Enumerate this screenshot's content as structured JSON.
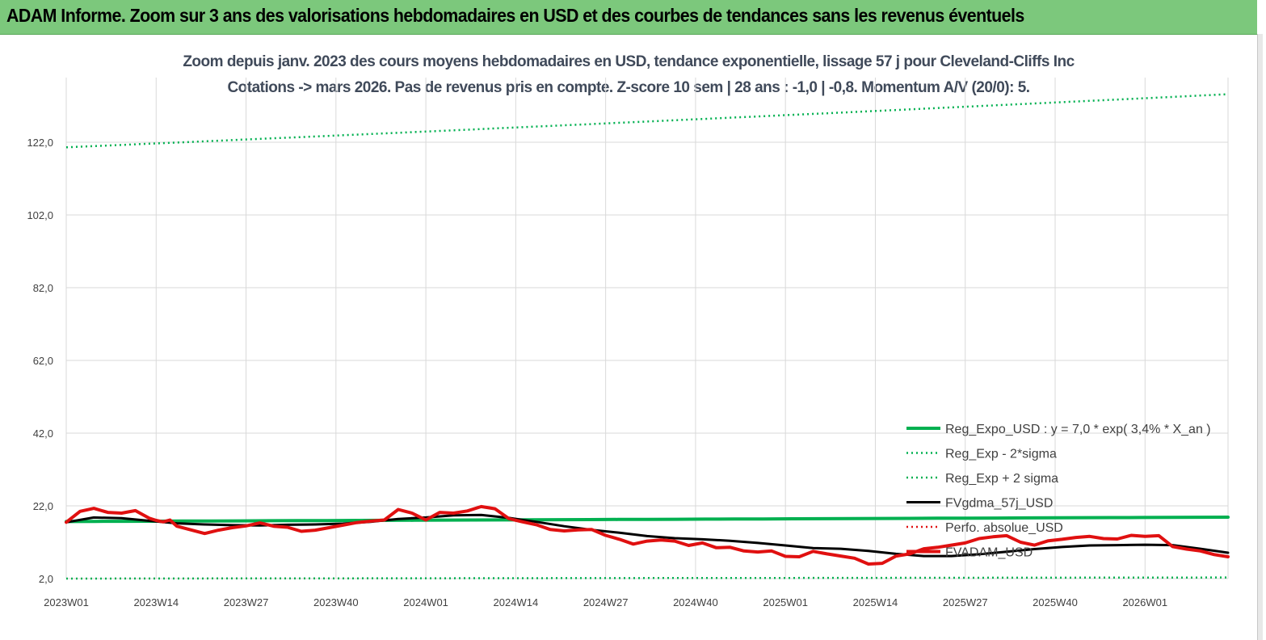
{
  "header": {
    "title": "ADAM Informe. Zoom sur 3 ans des valorisations hebdomadaires en USD et des courbes de tendances sans les revenus éventuels"
  },
  "chart_data": {
    "type": "line",
    "title": "Zoom depuis janv. 2023 des cours moyens hebdomadaires en USD, tendance exponentielle, lissage 57 j pour Cleveland-Cliffs Inc",
    "subtitle": "Cotations -> mars 2026. Pas de revenus pris en compte. Z-score 10 sem  | 28 ans : -1,0 | -0,8. Momentum A/V (20/0): 5.",
    "xlabel": "",
    "ylabel": "",
    "ylim": [
      2,
      142
    ],
    "grid": true,
    "legend_position": "bottom-right",
    "y_ticks": [
      "2,0",
      "22,0",
      "42,0",
      "62,0",
      "82,0",
      "102,0",
      "122,0"
    ],
    "y_tick_values": [
      2,
      22,
      42,
      62,
      82,
      102,
      122
    ],
    "x_ticks": [
      "2023W01",
      "2023W14",
      "2023W27",
      "2023W40",
      "2024W01",
      "2024W14",
      "2024W27",
      "2024W40",
      "2025W01",
      "2025W14",
      "2025W27",
      "2025W40",
      "2026W01"
    ],
    "x_range_weeks": [
      0,
      168
    ],
    "series": [
      {
        "name": "Reg_Expo_USD : y = 7,0 * exp( 3,4% *  X_an )",
        "color": "#00b050",
        "style": "solid",
        "width": 4,
        "x": [
          0,
          168
        ],
        "values": [
          17.7,
          18.9
        ]
      },
      {
        "name": "Reg_Exp - 2*sigma",
        "color": "#00b050",
        "style": "dotted",
        "width": 2.5,
        "x": [
          0,
          168
        ],
        "values": [
          2.0,
          2.3
        ]
      },
      {
        "name": "Reg_Exp + 2 sigma",
        "color": "#00b050",
        "style": "dotted",
        "width": 2.5,
        "x": [
          0,
          168
        ],
        "values": [
          120.6,
          135.2
        ]
      },
      {
        "name": "FVgdma_57j_USD",
        "color": "#000000",
        "style": "solid",
        "width": 3,
        "x": [
          0,
          4,
          8,
          12,
          16,
          20,
          24,
          28,
          32,
          36,
          40,
          44,
          48,
          52,
          56,
          60,
          64,
          68,
          72,
          76,
          80,
          84,
          88,
          92,
          96,
          100,
          104,
          108,
          112,
          116,
          120,
          124,
          128,
          132,
          136,
          140,
          144,
          148,
          152,
          156,
          160,
          164,
          168
        ],
        "values": [
          17.5,
          18.8,
          18.6,
          17.9,
          17.2,
          16.9,
          16.7,
          16.6,
          16.8,
          16.9,
          17.1,
          17.6,
          18.4,
          18.8,
          19.4,
          19.5,
          18.7,
          17.6,
          16.4,
          15.4,
          14.6,
          13.7,
          13.1,
          12.8,
          12.4,
          11.8,
          11.1,
          10.4,
          10.2,
          9.6,
          8.8,
          8.2,
          8.2,
          8.7,
          9.4,
          10.1,
          10.7,
          11.1,
          11.2,
          11.3,
          11.2,
          10.2,
          9.1
        ]
      },
      {
        "name": "Perfo. absolue_USD",
        "color": "#e01010",
        "style": "dotted",
        "width": 2.5,
        "x": [],
        "values": []
      },
      {
        "name": "FVADAM_USD",
        "color": "#e01010",
        "style": "solid",
        "width": 4,
        "x": [
          0,
          2,
          4,
          6,
          8,
          10,
          12,
          13,
          14,
          15,
          16,
          18,
          20,
          22,
          24,
          26,
          28,
          30,
          32,
          34,
          36,
          38,
          40,
          42,
          44,
          46,
          48,
          50,
          52,
          54,
          56,
          58,
          60,
          62,
          64,
          66,
          68,
          70,
          72,
          74,
          76,
          78,
          80,
          82,
          84,
          86,
          88,
          90,
          92,
          94,
          96,
          98,
          100,
          102,
          104,
          106,
          108,
          110,
          112,
          114,
          116,
          118,
          120,
          122,
          124,
          126,
          128,
          130,
          132,
          134,
          136,
          138,
          140,
          142,
          144,
          146,
          148,
          150,
          152,
          154,
          156,
          158,
          160,
          162,
          164,
          166,
          168
        ],
        "values": [
          17.5,
          20.5,
          21.3,
          20.2,
          20.0,
          20.7,
          18.6,
          18.0,
          17.6,
          18.1,
          16.4,
          15.4,
          14.4,
          15.3,
          16.0,
          16.5,
          17.3,
          16.4,
          16.1,
          15.0,
          15.3,
          16.0,
          16.7,
          17.4,
          17.8,
          18.1,
          21.0,
          20.0,
          18.1,
          20.2,
          20.0,
          20.6,
          21.8,
          21.2,
          18.5,
          17.6,
          16.8,
          15.5,
          15.1,
          15.4,
          15.5,
          13.9,
          12.8,
          11.5,
          12.3,
          12.6,
          12.3,
          11.1,
          11.8,
          10.5,
          10.6,
          9.6,
          9.3,
          9.6,
          8.1,
          8.0,
          9.5,
          8.8,
          8.2,
          7.6,
          6.0,
          6.2,
          8.2,
          8.8,
          10.2,
          10.6,
          11.2,
          11.8,
          13.0,
          13.5,
          13.8,
          12.0,
          11.2,
          12.4,
          12.8,
          13.3,
          13.6,
          13.0,
          12.9,
          13.9,
          13.6,
          13.8,
          10.8,
          10.1,
          9.6,
          8.6,
          8.0
        ]
      }
    ]
  }
}
